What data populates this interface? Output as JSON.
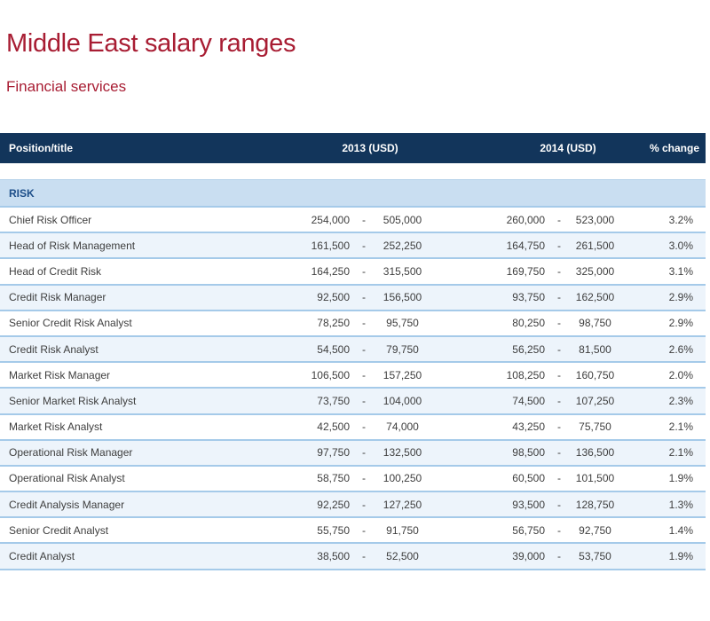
{
  "page": {
    "title": "Middle East salary ranges",
    "subtitle": "Financial services"
  },
  "colors": {
    "brand_red": "#A81D33",
    "header_bar_navy": "#12355B",
    "header_text": "#FFFFFF",
    "section_band_blue": "#C9DEF1",
    "section_text_navy": "#1D4E89",
    "row_alt_blue": "#EDF4FB",
    "row_separator_blue": "#A5CAE9",
    "body_text": "#3E3E3E"
  },
  "table": {
    "columns": [
      "Position/title",
      "2013 (USD)",
      "2014 (USD)",
      "% change"
    ],
    "section": "RISK",
    "dash": "-",
    "rows": [
      {
        "position": "Chief Risk Officer",
        "y2013_min": "254,000",
        "y2013_max": "505,000",
        "y2014_min": "260,000",
        "y2014_max": "523,000",
        "change": "3.2%"
      },
      {
        "position": "Head of Risk Management",
        "y2013_min": "161,500",
        "y2013_max": "252,250",
        "y2014_min": "164,750",
        "y2014_max": "261,500",
        "change": "3.0%"
      },
      {
        "position": "Head of Credit Risk",
        "y2013_min": "164,250",
        "y2013_max": "315,500",
        "y2014_min": "169,750",
        "y2014_max": "325,000",
        "change": "3.1%"
      },
      {
        "position": "Credit Risk Manager",
        "y2013_min": "92,500",
        "y2013_max": "156,500",
        "y2014_min": "93,750",
        "y2014_max": "162,500",
        "change": "2.9%"
      },
      {
        "position": "Senior Credit Risk Analyst",
        "y2013_min": "78,250",
        "y2013_max": "95,750",
        "y2014_min": "80,250",
        "y2014_max": "98,750",
        "change": "2.9%"
      },
      {
        "position": "Credit Risk Analyst",
        "y2013_min": "54,500",
        "y2013_max": "79,750",
        "y2014_min": "56,250",
        "y2014_max": "81,500",
        "change": "2.6%"
      },
      {
        "position": "Market Risk Manager",
        "y2013_min": "106,500",
        "y2013_max": "157,250",
        "y2014_min": "108,250",
        "y2014_max": "160,750",
        "change": "2.0%"
      },
      {
        "position": "Senior Market Risk Analyst",
        "y2013_min": "73,750",
        "y2013_max": "104,000",
        "y2014_min": "74,500",
        "y2014_max": "107,250",
        "change": "2.3%"
      },
      {
        "position": "Market Risk Analyst",
        "y2013_min": "42,500",
        "y2013_max": "74,000",
        "y2014_min": "43,250",
        "y2014_max": "75,750",
        "change": "2.1%"
      },
      {
        "position": "Operational Risk Manager",
        "y2013_min": "97,750",
        "y2013_max": "132,500",
        "y2014_min": "98,500",
        "y2014_max": "136,500",
        "change": "2.1%"
      },
      {
        "position": "Operational Risk Analyst",
        "y2013_min": "58,750",
        "y2013_max": "100,250",
        "y2014_min": "60,500",
        "y2014_max": "101,500",
        "change": "1.9%"
      },
      {
        "position": "Credit Analysis Manager",
        "y2013_min": "92,250",
        "y2013_max": "127,250",
        "y2014_min": "93,500",
        "y2014_max": "128,750",
        "change": "1.3%"
      },
      {
        "position": "Senior Credit Analyst",
        "y2013_min": "55,750",
        "y2013_max": "91,750",
        "y2014_min": "56,750",
        "y2014_max": "92,750",
        "change": "1.4%"
      },
      {
        "position": "Credit Analyst",
        "y2013_min": "38,500",
        "y2013_max": "52,500",
        "y2014_min": "39,000",
        "y2014_max": "53,750",
        "change": "1.9%"
      }
    ]
  }
}
